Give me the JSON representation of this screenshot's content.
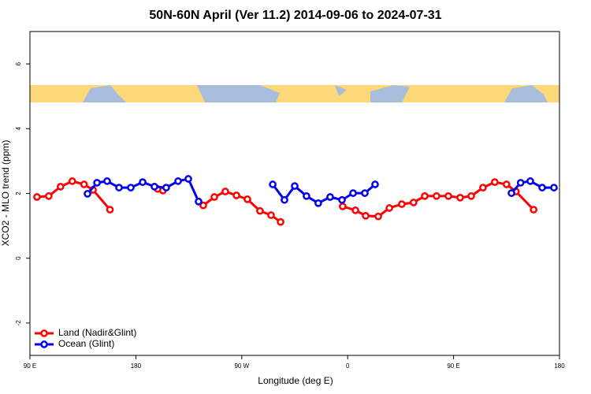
{
  "chart_data": {
    "type": "line",
    "title": "50N-60N April (Ver 11.2)   2014-09-06 to 2024-07-31",
    "x_label": "Longitude (deg E)",
    "y_label": "XCO2 - MLO trend (ppm)",
    "xlim": [
      90,
      540
    ],
    "ylim": [
      -3,
      7
    ],
    "xticks": [
      {
        "value": 90,
        "label": "90 E"
      },
      180,
      {
        "value": 270,
        "label": "90 W"
      },
      {
        "value": 360,
        "label": "0"
      },
      {
        "value": 450,
        "label": "90 E"
      },
      {
        "value": 540,
        "label": "180"
      }
    ],
    "yticks": [
      -2,
      0,
      2,
      4,
      6
    ],
    "legend": "bottom-left",
    "series": [
      {
        "name": "Land (Nadir&Glint)",
        "color": "#ff0000",
        "x": [
          96,
          106,
          116,
          126,
          136,
          143.6,
          158,
          null,
          198.5,
          203,
          null,
          237.3,
          246.7,
          256,
          265.5,
          274.8,
          285.5,
          294.9,
          303,
          null,
          355.8,
          366.6,
          375.3,
          386,
          395.4,
          406,
          416,
          425.5,
          435.5,
          445.6,
          455.6,
          465,
          475,
          485,
          495,
          503,
          518
        ],
        "values": [
          1.89,
          1.92,
          2.21,
          2.38,
          2.28,
          2.11,
          1.5,
          null,
          2.14,
          2.09,
          null,
          1.63,
          1.89,
          2.06,
          1.94,
          1.82,
          1.46,
          1.33,
          1.12,
          null,
          1.6,
          1.48,
          1.31,
          1.29,
          1.55,
          1.67,
          1.72,
          1.92,
          1.92,
          1.92,
          1.87,
          1.92,
          2.18,
          2.35,
          2.28,
          2.06,
          1.5
        ]
      },
      {
        "name": "Ocean (Glint)",
        "color": "#0000ee",
        "x": [
          138.9,
          147,
          155.6,
          165.7,
          175.7,
          185.8,
          195.8,
          205.8,
          215.9,
          224.6,
          233.3,
          null,
          296.3,
          306.3,
          315,
          325,
          335,
          345.1,
          355.2,
          364.6,
          374.6,
          383.3,
          null,
          499.2,
          507,
          515.2,
          525.3,
          535.3
        ],
        "values": [
          1.99,
          2.33,
          2.38,
          2.18,
          2.18,
          2.35,
          2.21,
          2.18,
          2.38,
          2.45,
          1.75,
          null,
          2.28,
          1.8,
          2.23,
          1.92,
          1.7,
          1.89,
          1.8,
          2.01,
          2.01,
          2.28,
          null,
          2.01,
          2.33,
          2.38,
          2.18,
          2.18
        ]
      }
    ]
  }
}
